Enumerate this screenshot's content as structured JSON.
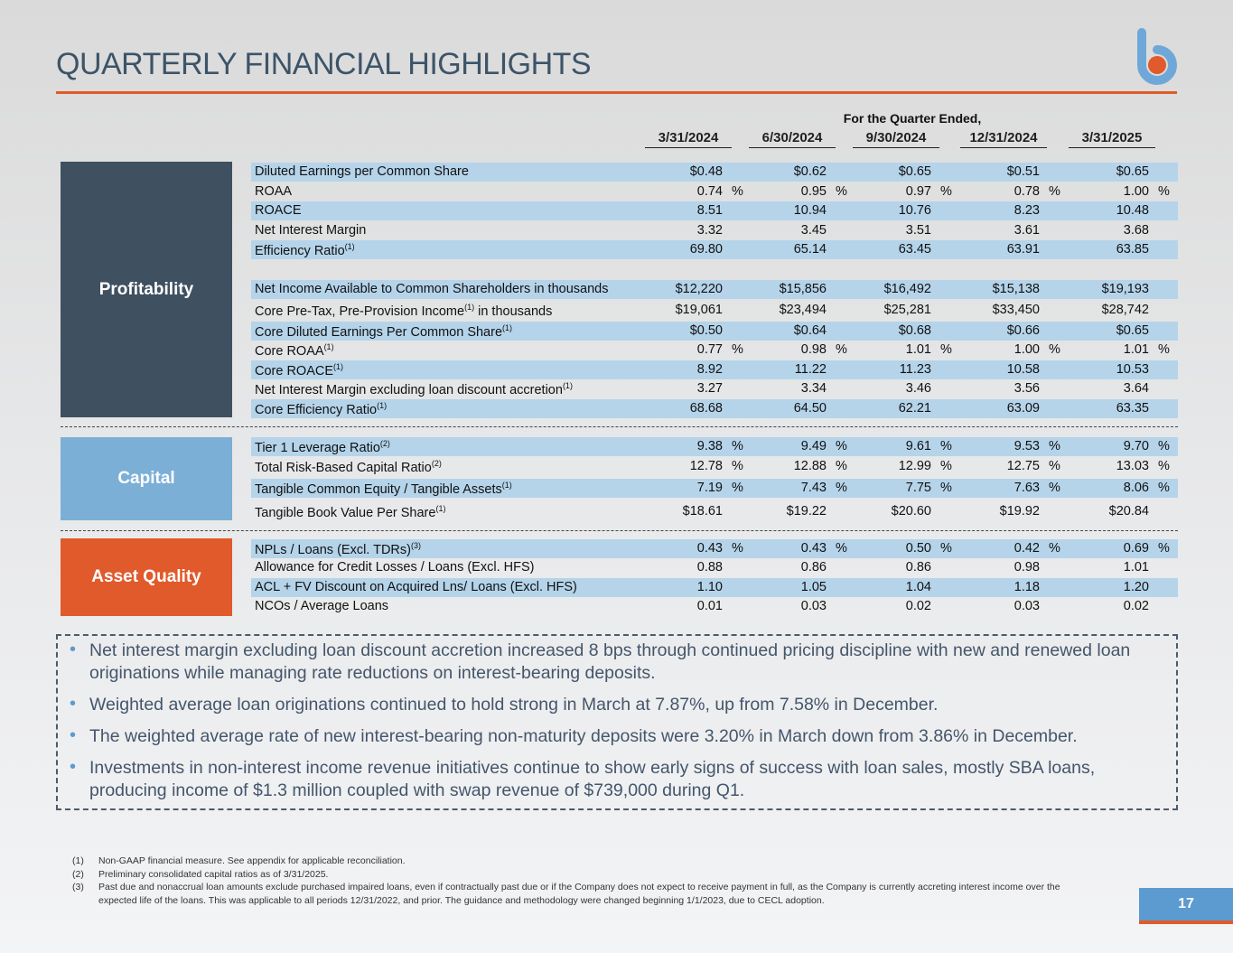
{
  "title": "QUARTERLY FINANCIAL HIGHLIGHTS",
  "logo": {
    "name": "b-logo",
    "colors": {
      "stem": "#6fa8d8",
      "dot": "#e15a2b"
    }
  },
  "colors": {
    "accent": "#e15a2b",
    "profitability": "#3f5061",
    "capital": "#7bafd6",
    "asset_quality": "#e15a2b",
    "row_shade": "#b5d4ea"
  },
  "table": {
    "caption": "For the Quarter Ended,",
    "columns": [
      "3/31/2024",
      "6/30/2024",
      "9/30/2024",
      "12/31/2024",
      "3/31/2025"
    ],
    "sections": [
      {
        "label": "Profitability",
        "rows": [
          {
            "label": "Diluted Earnings per Common Share",
            "sup": "",
            "values": [
              "$0.48",
              "$0.62",
              "$0.65",
              "$0.51",
              "$0.65"
            ],
            "pct": false,
            "shaded": true
          },
          {
            "label": "ROAA",
            "sup": "",
            "values": [
              "0.74",
              "0.95",
              "0.97",
              "0.78",
              "1.00"
            ],
            "pct": true,
            "shaded": false
          },
          {
            "label": "ROACE",
            "sup": "",
            "values": [
              "8.51",
              "10.94",
              "10.76",
              "8.23",
              "10.48"
            ],
            "pct": false,
            "shaded": true
          },
          {
            "label": "Net Interest Margin",
            "sup": "",
            "values": [
              "3.32",
              "3.45",
              "3.51",
              "3.61",
              "3.68"
            ],
            "pct": false,
            "shaded": false
          },
          {
            "label": "Efficiency Ratio",
            "sup": "(1)",
            "values": [
              "69.80",
              "65.14",
              "63.45",
              "63.91",
              "63.85"
            ],
            "pct": false,
            "shaded": true
          },
          {
            "label": "Net Income Available to Common Shareholders in thousands",
            "sup": "",
            "values": [
              "$12,220",
              "$15,856",
              "$16,492",
              "$15,138",
              "$19,193"
            ],
            "pct": false,
            "shaded": true
          },
          {
            "label": "Core Pre-Tax, Pre-Provision Income",
            "sup": "(1)",
            "suffix": " in thousands",
            "values": [
              "$19,061",
              "$23,494",
              "$25,281",
              "$33,450",
              "$28,742"
            ],
            "pct": false,
            "shaded": false
          },
          {
            "label": "Core Diluted Earnings Per Common Share",
            "sup": "(1)",
            "values": [
              "$0.50",
              "$0.64",
              "$0.68",
              "$0.66",
              "$0.65"
            ],
            "pct": false,
            "shaded": true
          },
          {
            "label": "Core ROAA",
            "sup": "(1)",
            "values": [
              "0.77",
              "0.98",
              "1.01",
              "1.00",
              "1.01"
            ],
            "pct": true,
            "shaded": false
          },
          {
            "label": "Core ROACE",
            "sup": "(1)",
            "values": [
              "8.92",
              "11.22",
              "11.23",
              "10.58",
              "10.53"
            ],
            "pct": false,
            "shaded": true
          },
          {
            "label": "Net Interest Margin excluding loan discount accretion",
            "sup": "(1)",
            "values": [
              "3.27",
              "3.34",
              "3.46",
              "3.56",
              "3.64"
            ],
            "pct": false,
            "shaded": false
          },
          {
            "label": "Core Efficiency Ratio",
            "sup": "(1)",
            "values": [
              "68.68",
              "64.50",
              "62.21",
              "63.09",
              "63.35"
            ],
            "pct": false,
            "shaded": true
          }
        ]
      },
      {
        "label": "Capital",
        "rows": [
          {
            "label": "Tier 1 Leverage Ratio",
            "sup": "(2)",
            "values": [
              "9.38",
              "9.49",
              "9.61",
              "9.53",
              "9.70"
            ],
            "pct": true,
            "shaded": true
          },
          {
            "label": "Total Risk-Based Capital Ratio",
            "sup": "(2)",
            "values": [
              "12.78",
              "12.88",
              "12.99",
              "12.75",
              "13.03"
            ],
            "pct": true,
            "shaded": false
          },
          {
            "label": "Tangible Common Equity / Tangible Assets",
            "sup": "(1)",
            "values": [
              "7.19",
              "7.43",
              "7.75",
              "7.63",
              "8.06"
            ],
            "pct": true,
            "shaded": true
          },
          {
            "label": "Tangible Book Value Per Share",
            "sup": "(1)",
            "values": [
              "$18.61",
              "$19.22",
              "$20.60",
              "$19.92",
              "$20.84"
            ],
            "pct": false,
            "shaded": false
          }
        ]
      },
      {
        "label": "Asset Quality",
        "rows": [
          {
            "label": "NPLs / Loans (Excl. TDRs)",
            "sup": "(3)",
            "values": [
              "0.43",
              "0.43",
              "0.50",
              "0.42",
              "0.69"
            ],
            "pct": true,
            "shaded": true
          },
          {
            "label": "Allowance for Credit Losses / Loans (Excl. HFS)",
            "sup": "",
            "values": [
              "0.88",
              "0.86",
              "0.86",
              "0.98",
              "1.01"
            ],
            "pct": false,
            "shaded": false
          },
          {
            "label": "ACL + FV Discount on Acquired Lns/ Loans (Excl. HFS)",
            "sup": "",
            "values": [
              "1.10",
              "1.05",
              "1.04",
              "1.18",
              "1.20"
            ],
            "pct": false,
            "shaded": true
          },
          {
            "label": "NCOs / Average Loans",
            "sup": "",
            "values": [
              "0.01",
              "0.03",
              "0.02",
              "0.03",
              "0.02"
            ],
            "pct": false,
            "shaded": false
          }
        ]
      }
    ],
    "pct_sign": "%"
  },
  "bullets": [
    "Net interest margin excluding loan discount accretion increased 8 bps through continued pricing discipline with new and renewed loan originations while managing rate reductions on interest-bearing deposits.",
    "Weighted average loan originations continued to hold strong in March at 7.87%, up from 7.58% in December.",
    "The weighted average rate of new interest-bearing non-maturity deposits were 3.20% in March down from 3.86% in December.",
    "Investments in non-interest income revenue initiatives continue to show early signs of success with loan sales, mostly SBA loans, producing income of $1.3 million coupled with swap revenue of $739,000 during Q1."
  ],
  "footnotes": [
    {
      "num": "(1)",
      "text": "Non-GAAP financial measure. See appendix for applicable reconciliation."
    },
    {
      "num": "(2)",
      "text": "Preliminary consolidated capital ratios as of 3/31/2025."
    },
    {
      "num": "(3)",
      "text": "Past due and nonaccrual loan amounts exclude purchased impaired loans, even if contractually past due or if the Company does not expect to receive payment in full, as the Company is currently accreting interest income over the expected life of the loans. This was applicable to all periods 12/31/2022, and prior. The guidance and methodology were changed beginning 1/1/2023, due to CECL adoption."
    }
  ],
  "page_number": "17"
}
